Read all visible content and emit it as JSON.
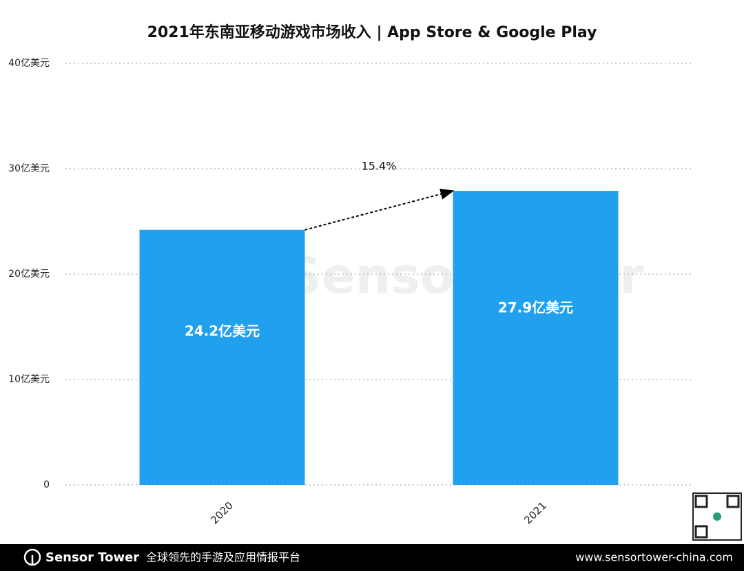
{
  "chart_data": {
    "type": "bar",
    "title": "2021年东南亚移动游戏市场收入 | App Store & Google Play",
    "categories": [
      "2020",
      "2021"
    ],
    "values": [
      24.2,
      27.9
    ],
    "value_labels": [
      "24.2亿美元",
      "27.9亿美元"
    ],
    "color": "#21a0ee",
    "ylim": [
      0,
      40
    ],
    "yticks": [
      0,
      {
        "value": 10,
        "label": "10亿美元"
      },
      {
        "value": 20,
        "label": "20亿美元"
      },
      {
        "value": 30,
        "label": "30亿美元"
      },
      {
        "value": 40,
        "label": "40亿美元"
      }
    ],
    "grid": true,
    "annotation": "15.4%",
    "watermark": "SensorTower"
  },
  "footer": {
    "brand": "Sensor Tower",
    "tagline": "全球领先的手游及应用情报平台",
    "url": "www.sensortower-china.com"
  }
}
